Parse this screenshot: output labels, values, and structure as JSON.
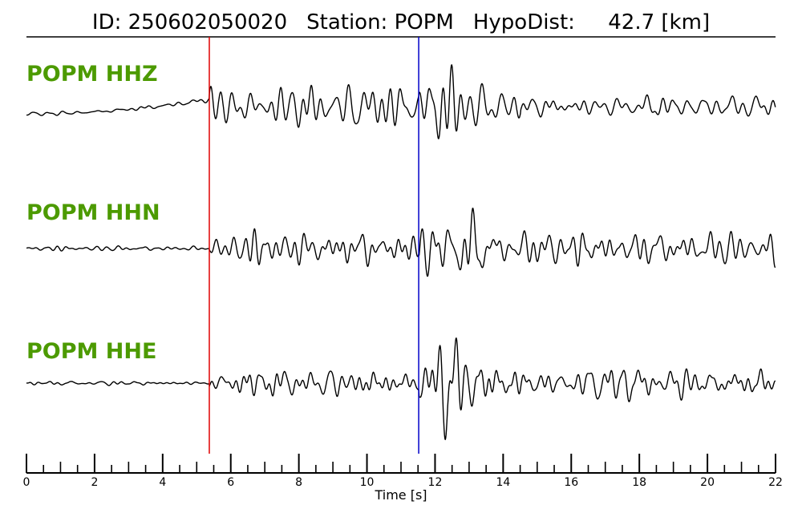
{
  "title": {
    "id_text": "ID: 250602050020",
    "station_text": "Station: POPM",
    "dist_text": "HypoDist:     42.7 [km]"
  },
  "colors": {
    "label": "#4c9a00",
    "trace": "#000000",
    "p_pick": "#e00000",
    "s_pick": "#0000c8"
  },
  "chart_data": {
    "type": "line",
    "title": "ID: 250602050020   Station: POPM   HypoDist:     42.7 [km]",
    "xlabel": "Time [s]",
    "ylabel": "",
    "xlim": [
      0,
      22
    ],
    "major_ticks": [
      0,
      2,
      4,
      6,
      8,
      10,
      12,
      14,
      16,
      18,
      20,
      22
    ],
    "tick_labels": [
      "0",
      "2",
      "4",
      "6",
      "8",
      "10",
      "12",
      "14",
      "16",
      "18",
      "20",
      "22"
    ],
    "minor_tick_step": 0.5,
    "grid": false,
    "picks": [
      {
        "phase": "P",
        "time": 5.37,
        "color": "#e00000"
      },
      {
        "phase": "S",
        "time": 11.52,
        "color": "#0000c8"
      }
    ],
    "series": [
      {
        "name": "POPM HHZ",
        "component": "Z"
      },
      {
        "name": "POPM HHN",
        "component": "N"
      },
      {
        "name": "POPM HHE",
        "component": "E"
      }
    ]
  }
}
